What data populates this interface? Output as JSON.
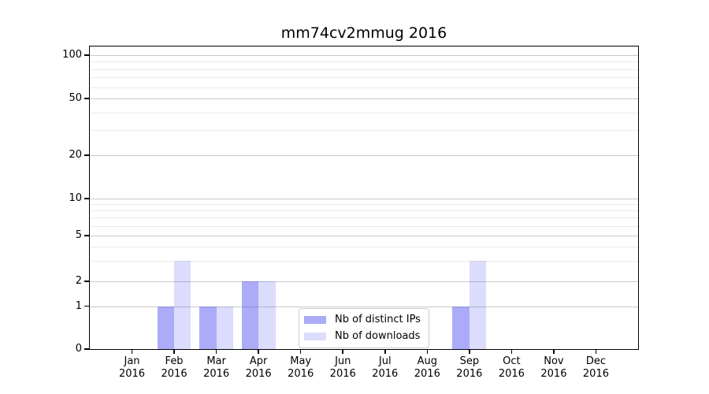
{
  "title": "mm74cv2mmug 2016",
  "chart_data": {
    "type": "bar",
    "title": "mm74cv2mmug 2016",
    "categories": [
      "Jan 2016",
      "Feb 2016",
      "Mar 2016",
      "Apr 2016",
      "May 2016",
      "Jun 2016",
      "Jul 2016",
      "Aug 2016",
      "Sep 2016",
      "Oct 2016",
      "Nov 2016",
      "Dec 2016"
    ],
    "series": [
      {
        "name": "Nb of distinct IPs",
        "key": "distinct-ips",
        "values": [
          0,
          1,
          1,
          2,
          0,
          0,
          0,
          0,
          1,
          0,
          0,
          0
        ],
        "color": "#aaaafa",
        "rgba": "rgba(68,68,238,0.45)"
      },
      {
        "name": "Nb of downloads",
        "key": "downloads",
        "values": [
          0,
          3,
          1,
          2,
          0,
          0,
          0,
          0,
          3,
          0,
          0,
          0
        ],
        "color": "#dbdbfa",
        "rgba": "rgba(68,68,238,0.19)"
      }
    ],
    "xlabel": "",
    "ylabel": "",
    "yscale": "symlog",
    "y_major_ticks": [
      0,
      1,
      2,
      5,
      10,
      20,
      50,
      100
    ],
    "y_minor_ticks": [
      3,
      4,
      6,
      7,
      8,
      9,
      30,
      40,
      60,
      70,
      80,
      90
    ],
    "ylim": [
      0,
      115
    ],
    "grid": "horizontal",
    "legend_position": "lower center"
  }
}
